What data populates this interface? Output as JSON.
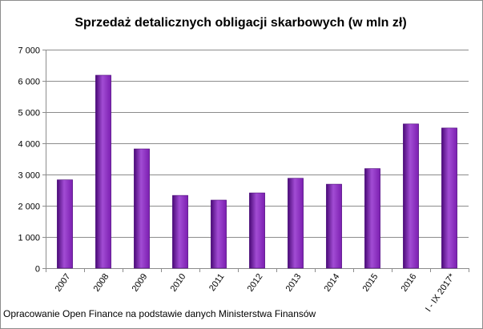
{
  "chart_data": {
    "type": "bar",
    "title": "Sprzedaż detalicznych obligacji skarbowych (w mln zł)",
    "xlabel": "",
    "ylabel": "",
    "categories": [
      "2007",
      "2008",
      "2009",
      "2010",
      "2011",
      "2012",
      "2013",
      "2014",
      "2015",
      "2016",
      "I - IX 2017*"
    ],
    "values": [
      2830,
      6180,
      3820,
      2330,
      2180,
      2410,
      2880,
      2690,
      3190,
      4620,
      4490
    ],
    "ylim": [
      0,
      7000
    ],
    "yticks": [
      0,
      1000,
      2000,
      3000,
      4000,
      5000,
      6000,
      7000
    ],
    "ytick_labels": [
      "0",
      "1 000",
      "2 000",
      "3 000",
      "4 000",
      "5 000",
      "6 000",
      "7 000"
    ],
    "grid": true,
    "legend": "none",
    "bar_color": "#7b1fb0",
    "bar_color_light": "#a24cd4",
    "bar_color_dark": "#4a0a78"
  },
  "footer": {
    "source": "Opracowanie Open Finance na podstawie danych Ministerstwa Finansów"
  }
}
